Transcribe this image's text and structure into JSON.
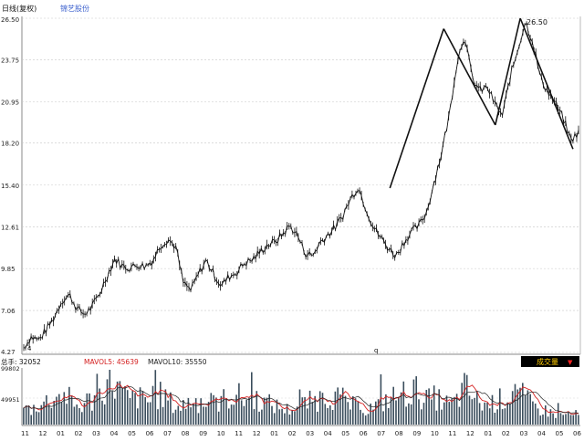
{
  "header": {
    "period_label": "日线(复权)",
    "stock_name": "锦艺股份"
  },
  "colors": {
    "background": "#ffffff",
    "grid": "#c8c8c8",
    "price_line": "#111111",
    "stock_name": "#3a5fcd",
    "vol_bar": "#3a4d5c",
    "mavol5": "#d42020",
    "mavol10": "#222222",
    "vol_button_bg": "#000000",
    "vol_button_fg": "#ffcc00",
    "vol_button_arrow": "#ff2020"
  },
  "price_axis_ticks": [
    "26.50",
    "23.75",
    "20.95",
    "18.20",
    "15.40",
    "12.61",
    "9.85",
    "7.06",
    "4.27"
  ],
  "peak_label": "26.50",
  "low_marker": "4",
  "mid_marker": "q",
  "volume_panel": {
    "total_label": "总手: 32052",
    "mavol5_label": "MAVOL5: 45639",
    "mavol10_label": "MAVOL10: 35550",
    "button_label": "成交量",
    "button_arrow": "▼",
    "axis_ticks": [
      "99802",
      "49951"
    ]
  },
  "month_labels": [
    "11",
    "12",
    "01",
    "02",
    "03",
    "04",
    "05",
    "06",
    "07",
    "08",
    "09",
    "10",
    "11",
    "12",
    "01",
    "02",
    "03",
    "04",
    "05",
    "06",
    "07",
    "08",
    "09",
    "10",
    "11",
    "12",
    "01",
    "02",
    "03",
    "04",
    "05",
    "06"
  ],
  "chart_data": {
    "type": "line",
    "title": "",
    "ylim": [
      4.27,
      26.5
    ],
    "y_ticks": [
      4.27,
      7.06,
      9.85,
      12.61,
      15.4,
      18.2,
      20.95,
      23.75,
      26.5
    ],
    "series": [
      {
        "values": [
          4.6,
          5.3,
          5.1,
          5.8,
          6.6,
          7.7,
          8.1,
          7.2,
          6.8,
          7.3,
          8.2,
          9.4,
          10.5,
          10.0,
          9.9,
          10.1,
          10.0,
          10.4,
          11.4,
          11.8,
          11.3,
          8.9,
          8.4,
          9.5,
          10.4,
          9.5,
          8.7,
          9.3,
          9.6,
          10.2,
          10.4,
          10.9,
          11.4,
          11.6,
          12.1,
          12.7,
          12.1,
          10.9,
          10.7,
          11.6,
          12.1,
          12.6,
          13.4,
          14.5,
          15.3,
          13.9,
          12.6,
          11.9,
          11.2,
          10.7,
          11.6,
          12.3,
          12.7,
          13.6,
          15.6,
          17.6,
          20.1,
          23.6,
          25.4,
          22.5,
          21.7,
          21.9,
          20.8,
          20.0,
          22.6,
          24.4,
          26.3,
          24.9,
          22.5,
          21.6,
          20.8,
          19.8,
          18.4,
          18.9
        ]
      }
    ],
    "trend_lines": [
      {
        "x": [
          0.66,
          0.757
        ],
        "y": [
          15.2,
          25.8
        ]
      },
      {
        "x": [
          0.757,
          0.85
        ],
        "y": [
          25.8,
          19.4
        ]
      },
      {
        "x": [
          0.85,
          0.895
        ],
        "y": [
          19.4,
          26.5
        ]
      },
      {
        "x": [
          0.895,
          0.99
        ],
        "y": [
          26.5,
          17.8
        ]
      }
    ],
    "volume_axis": [
      0,
      99802
    ],
    "volume_levels": [
      0.35,
      0.3,
      0.4,
      0.45,
      0.55,
      0.5,
      0.6,
      0.4,
      0.35,
      0.5,
      0.45,
      0.7,
      0.9,
      0.8,
      0.6,
      0.5,
      0.55,
      0.5,
      0.45,
      0.6,
      0.55,
      0.4,
      0.35,
      0.45,
      0.5,
      0.4,
      0.35,
      0.45,
      0.5,
      0.55,
      0.6,
      0.5,
      0.55,
      0.5,
      0.45,
      0.4,
      0.35,
      0.3,
      0.35,
      0.4,
      0.45,
      0.5,
      0.55,
      0.6,
      0.55,
      0.5,
      0.4,
      0.35,
      0.3,
      0.35,
      0.4,
      0.5,
      0.55,
      0.6,
      0.65,
      0.7,
      0.6,
      0.5,
      0.55,
      0.45,
      0.4,
      0.5,
      0.75,
      0.6,
      0.45,
      0.4,
      0.45,
      0.5,
      0.55,
      0.7,
      0.6,
      0.45,
      0.35,
      0.3,
      0.25,
      0.2,
      0.2,
      0.2,
      0.2
    ]
  }
}
